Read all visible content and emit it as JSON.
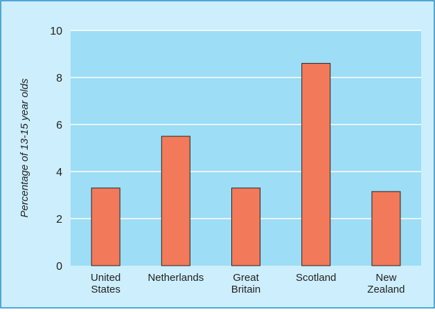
{
  "chart_data": {
    "type": "bar",
    "title": "",
    "xlabel": "",
    "ylabel": "Percentage of 13-15 year olds",
    "categories": [
      [
        "United",
        "States"
      ],
      [
        "Netherlands"
      ],
      [
        "Great",
        "Britain"
      ],
      [
        "Scotland"
      ],
      [
        "New",
        "Zealand"
      ]
    ],
    "values": [
      3.3,
      5.5,
      3.3,
      8.6,
      3.15
    ],
    "ylim": [
      0,
      10
    ],
    "yticks": [
      "0",
      "2",
      "4",
      "6",
      "8",
      "10"
    ],
    "grid": true,
    "colors": {
      "outer_background": "#cdeefc",
      "plot_background": "#9dddf5",
      "bar_fill": "#f27a5a",
      "bar_stroke": "#222222",
      "gridline": "#ffffff",
      "frame": "#1f8cc8",
      "text": "#222222"
    }
  }
}
